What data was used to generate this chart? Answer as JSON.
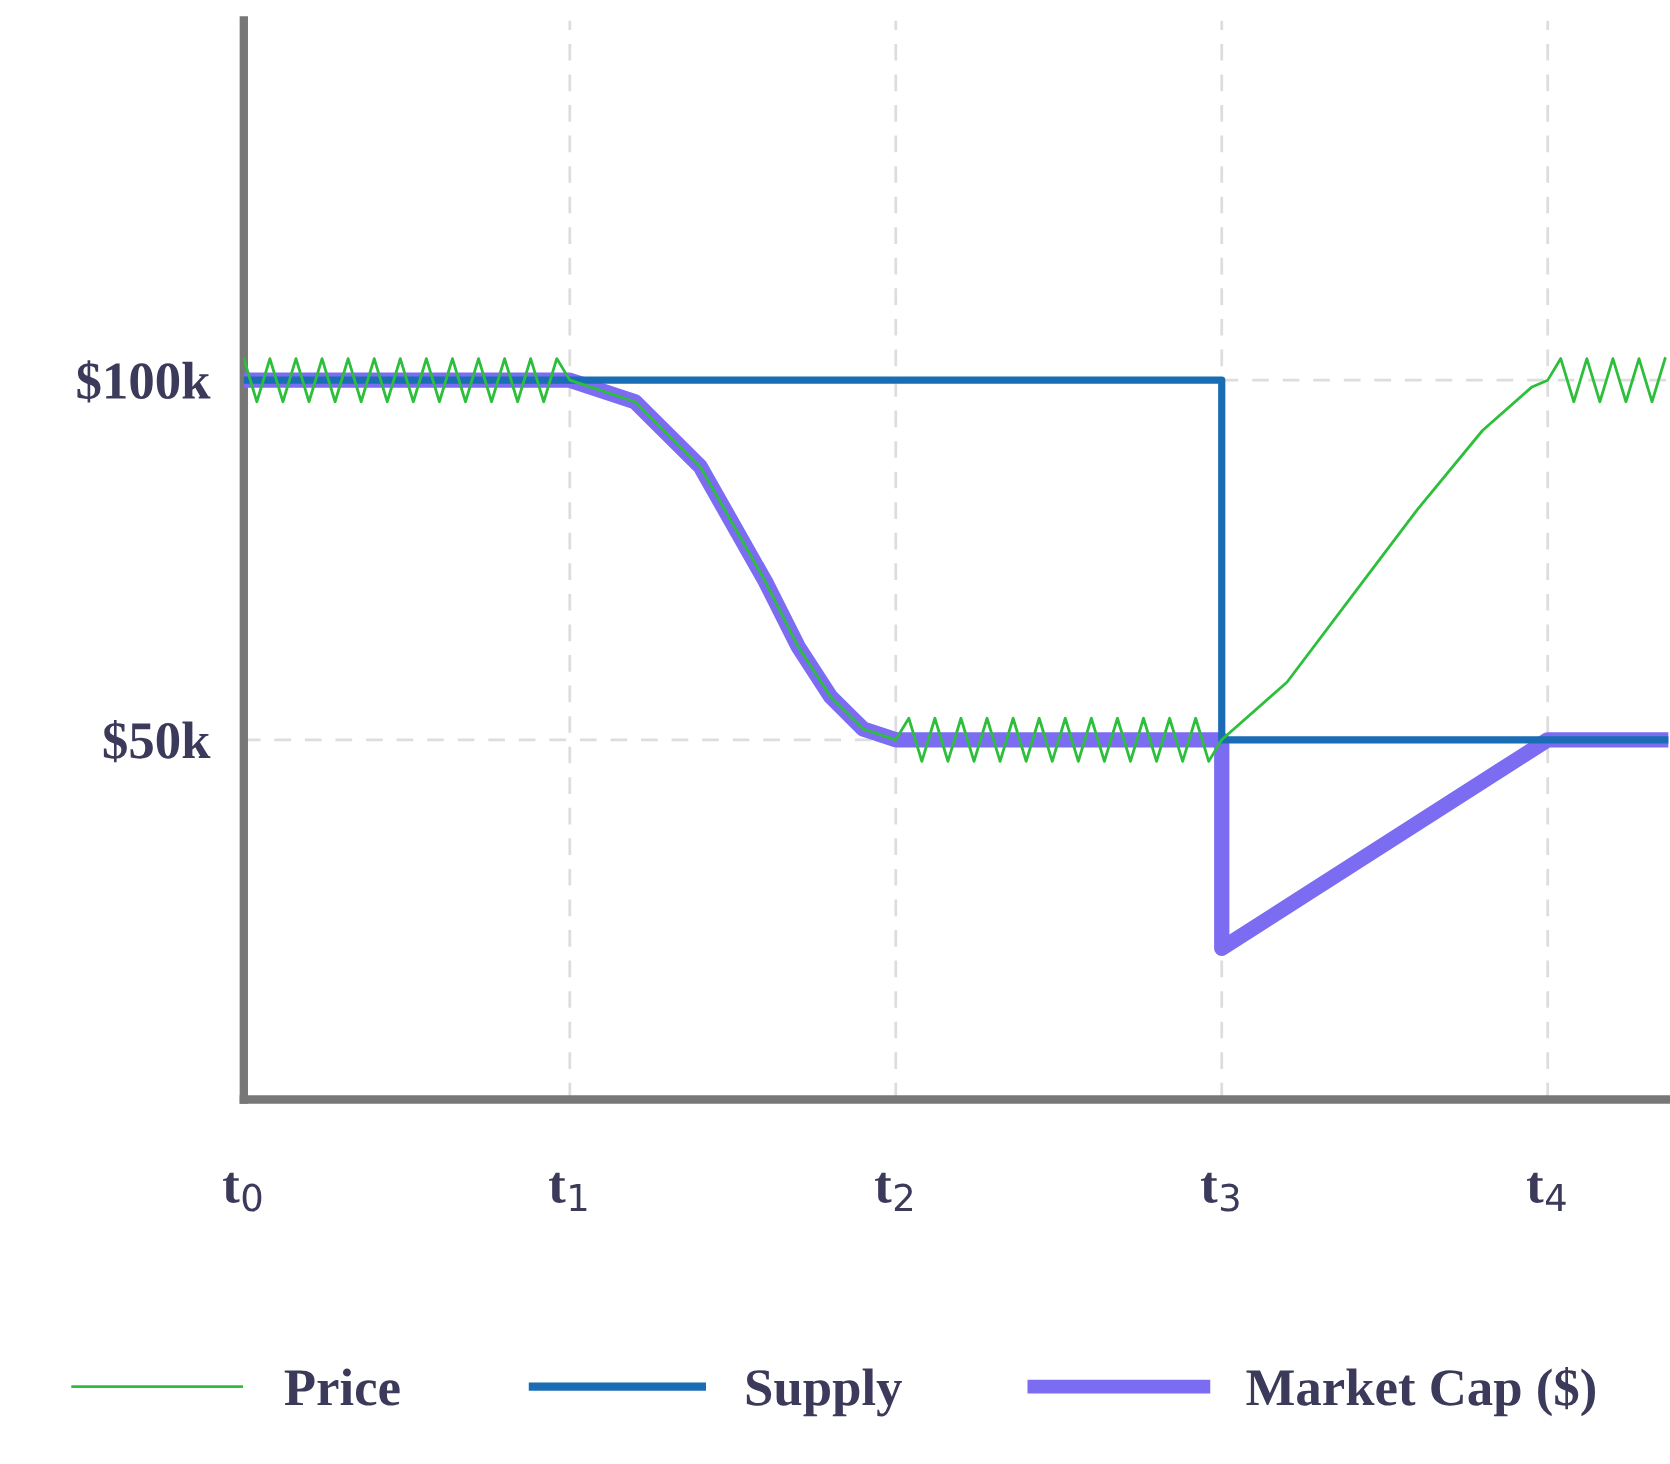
{
  "chart_data": {
    "type": "line",
    "xlim": [
      0,
      4.37
    ],
    "ylim": [
      0,
      150000
    ],
    "xticks": [
      {
        "value": 0,
        "label": "t$_{0}$"
      },
      {
        "value": 1,
        "label": "t$_{1}$"
      },
      {
        "value": 2,
        "label": "t$_{2}$"
      },
      {
        "value": 3,
        "label": "t$_{3}$"
      },
      {
        "value": 4,
        "label": "t$_{4}$"
      }
    ],
    "yticks": [
      {
        "value": 50000,
        "label": "$50k"
      },
      {
        "value": 100000,
        "label": "$100k"
      }
    ],
    "grid": true,
    "legend": "bottom",
    "line_style": "solid",
    "marker": "none",
    "series": [
      {
        "name": "Price",
        "color": "#2dbf3c",
        "x": [
          0,
          0.04,
          0.08,
          0.12,
          0.16,
          0.2,
          0.24,
          0.28,
          0.32,
          0.36,
          0.4,
          0.44,
          0.48,
          0.52,
          0.56,
          0.6,
          0.64,
          0.68,
          0.72,
          0.76,
          0.8,
          0.84,
          0.88,
          0.92,
          0.96,
          1.0,
          1.2,
          1.4,
          1.5,
          1.6,
          1.7,
          1.8,
          1.9,
          2.0,
          2.04,
          2.08,
          2.12,
          2.16,
          2.2,
          2.24,
          2.28,
          2.32,
          2.36,
          2.4,
          2.44,
          2.48,
          2.52,
          2.56,
          2.6,
          2.64,
          2.68,
          2.72,
          2.76,
          2.8,
          2.84,
          2.88,
          2.92,
          2.96,
          3.0,
          3.2,
          3.4,
          3.6,
          3.8,
          3.95,
          4.0,
          4.04,
          4.08,
          4.12,
          4.16,
          4.2,
          4.24,
          4.28,
          4.32,
          4.36
        ],
        "values": [
          103000,
          97000,
          103000,
          97000,
          103000,
          97000,
          103000,
          97000,
          103000,
          97000,
          103000,
          97000,
          103000,
          97000,
          103000,
          97000,
          103000,
          97000,
          103000,
          97000,
          103000,
          97000,
          103000,
          97000,
          103000,
          100000,
          97000,
          88000,
          80000,
          72000,
          63000,
          56000,
          51500,
          50000,
          53000,
          47000,
          53000,
          47000,
          53000,
          47000,
          53000,
          47000,
          53000,
          47000,
          53000,
          47000,
          53000,
          47000,
          53000,
          47000,
          53000,
          47000,
          53000,
          47000,
          53000,
          47000,
          53000,
          47000,
          50000,
          58000,
          70000,
          82000,
          93000,
          99000,
          100000,
          103000,
          97000,
          103000,
          97000,
          103000,
          97000,
          103000,
          97000,
          103000
        ]
      },
      {
        "name": "Supply",
        "color": "#1a6db5",
        "x": [
          0,
          3,
          3,
          4.37
        ],
        "values": [
          100000,
          100000,
          50000,
          50000
        ]
      },
      {
        "name": "Market Cap ($)",
        "color": "#7b6cf2",
        "x": [
          0,
          1,
          1.2,
          1.4,
          1.5,
          1.6,
          1.7,
          1.8,
          1.9,
          2.0,
          3.0,
          3.0,
          4.0,
          4.37
        ],
        "values": [
          100000,
          100000,
          97000,
          88000,
          80000,
          72000,
          63000,
          56000,
          51500,
          50000,
          50000,
          21000,
          50000,
          50000
        ]
      }
    ]
  }
}
